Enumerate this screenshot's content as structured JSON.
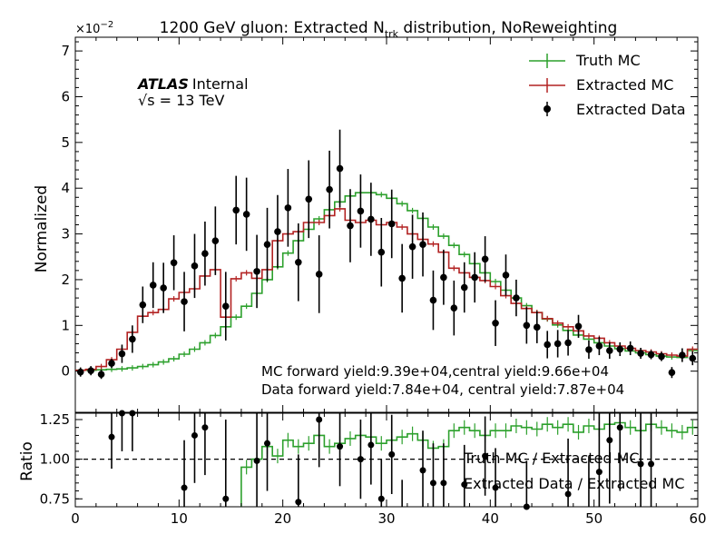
{
  "title_prefix": "1200 GeV gluon: Extracted N",
  "title_sub": "trk",
  "title_suffix": " distribution, NoReweighting",
  "scale_label": "×10",
  "scale_exp": "−2",
  "atlas_bold": "ATLAS",
  "atlas_internal": "Internal",
  "energy_label": "√s =  13 TeV",
  "mc_yield_text": "MC forward yield:9.39e+04,central yield:9.66e+04",
  "data_yield_text": "Data forward yield:7.84e+04, central yield:7.87e+04",
  "colors": {
    "truth": "#2ca02c",
    "extracted_mc": "#b22222",
    "data": "#000000"
  },
  "chart_data": [
    {
      "type": "line",
      "panel": "main",
      "ylabel": "Normalized",
      "xlim": [
        0,
        60
      ],
      "ylim": [
        -0.9,
        7.3
      ],
      "y_multiplier_text": "×10^-2",
      "yticks": [
        "0",
        "1",
        "2",
        "3",
        "4",
        "5",
        "6",
        "7"
      ],
      "legend_position": "top-right",
      "legend": [
        "Truth MC",
        "Extracted MC",
        "Extracted Data"
      ],
      "bin_edges_start": 0,
      "bin_width": 1,
      "series": [
        {
          "name": "Truth MC",
          "kind": "step",
          "values": [
            0.02,
            0.02,
            0.03,
            0.04,
            0.05,
            0.07,
            0.1,
            0.14,
            0.2,
            0.27,
            0.37,
            0.48,
            0.62,
            0.78,
            0.97,
            1.18,
            1.42,
            1.7,
            2.0,
            2.28,
            2.58,
            2.85,
            3.1,
            3.33,
            3.53,
            3.7,
            3.83,
            3.9,
            3.9,
            3.86,
            3.78,
            3.66,
            3.51,
            3.34,
            3.15,
            2.95,
            2.75,
            2.55,
            2.35,
            2.15,
            1.96,
            1.77,
            1.6,
            1.43,
            1.28,
            1.14,
            1.01,
            0.89,
            0.79,
            0.7,
            0.62,
            0.55,
            0.49,
            0.44,
            0.4,
            0.36,
            0.33,
            0.31,
            0.3,
            0.45
          ]
        },
        {
          "name": "Extracted MC",
          "kind": "step",
          "values": [
            0.02,
            0.04,
            0.1,
            0.25,
            0.48,
            0.85,
            1.2,
            1.28,
            1.35,
            1.58,
            1.72,
            1.8,
            2.08,
            2.22,
            1.18,
            2.02,
            2.15,
            2.03,
            2.22,
            2.85,
            3.0,
            3.05,
            3.25,
            3.25,
            3.4,
            3.55,
            3.3,
            3.25,
            3.3,
            3.2,
            3.25,
            3.15,
            3.0,
            2.88,
            2.78,
            2.6,
            2.25,
            2.15,
            2.05,
            1.98,
            1.85,
            1.65,
            1.48,
            1.37,
            1.28,
            1.15,
            1.05,
            0.97,
            0.88,
            0.77,
            0.72,
            0.62,
            0.55,
            0.5,
            0.45,
            0.42,
            0.38,
            0.35,
            0.33,
            0.48
          ]
        },
        {
          "name": "Extracted Data",
          "kind": "points",
          "x": [
            0.5,
            1.5,
            2.5,
            3.5,
            4.5,
            5.5,
            6.5,
            7.5,
            8.5,
            9.5,
            10.5,
            11.5,
            12.5,
            13.5,
            14.5,
            15.5,
            16.5,
            17.5,
            18.5,
            19.5,
            20.5,
            21.5,
            22.5,
            23.5,
            24.5,
            25.5,
            26.5,
            27.5,
            28.5,
            29.5,
            30.5,
            31.5,
            32.5,
            33.5,
            34.5,
            35.5,
            36.5,
            37.5,
            38.5,
            39.5,
            40.5,
            41.5,
            42.5,
            43.5,
            44.5,
            45.5,
            46.5,
            47.5,
            48.5,
            49.5,
            50.5,
            51.5,
            52.5,
            53.5,
            54.5,
            55.5,
            56.5,
            57.5,
            58.5,
            59.5
          ],
          "y": [
            -0.02,
            0.01,
            -0.07,
            0.17,
            0.38,
            0.7,
            1.45,
            1.88,
            1.82,
            2.37,
            1.52,
            2.3,
            2.57,
            2.85,
            1.42,
            3.52,
            3.43,
            2.18,
            2.77,
            3.05,
            3.57,
            2.38,
            3.76,
            2.12,
            3.97,
            4.43,
            3.18,
            3.5,
            3.32,
            2.6,
            3.22,
            2.03,
            2.72,
            2.77,
            1.55,
            2.05,
            1.38,
            1.83,
            2.05,
            2.45,
            1.05,
            2.1,
            1.6,
            1.0,
            0.96,
            0.58,
            0.6,
            0.62,
            0.98,
            0.47,
            0.55,
            0.45,
            0.48,
            0.5,
            0.39,
            0.36,
            0.32,
            -0.03,
            0.35,
            0.28
          ],
          "yerr": [
            0.1,
            0.1,
            0.1,
            0.1,
            0.2,
            0.3,
            0.4,
            0.5,
            0.55,
            0.6,
            0.65,
            0.7,
            0.7,
            0.75,
            0.75,
            0.75,
            0.8,
            0.8,
            0.8,
            0.8,
            0.85,
            0.85,
            0.85,
            0.85,
            0.85,
            0.85,
            0.8,
            0.8,
            0.8,
            0.75,
            0.75,
            0.75,
            0.7,
            0.7,
            0.65,
            0.6,
            0.6,
            0.55,
            0.55,
            0.5,
            0.5,
            0.45,
            0.4,
            0.4,
            0.35,
            0.3,
            0.3,
            0.28,
            0.25,
            0.2,
            0.2,
            0.18,
            0.15,
            0.15,
            0.12,
            0.1,
            0.1,
            0.12,
            0.15,
            0.15
          ]
        }
      ]
    },
    {
      "type": "line",
      "panel": "ratio",
      "xlabel": "",
      "ylabel": "Ratio",
      "xlim": [
        0,
        60
      ],
      "ylim": [
        0.7,
        1.29
      ],
      "yticks": [
        "0.75",
        "1.00",
        "1.25"
      ],
      "xticks": [
        "0",
        "10",
        "20",
        "30",
        "40",
        "50",
        "60"
      ],
      "reference_line": 1.0,
      "legend_position": "center-right",
      "legend": [
        "Truth MC / Extracted MC",
        "Extracted Data / Extracted MC"
      ],
      "series": [
        {
          "name": "Truth MC / Extracted MC",
          "kind": "step",
          "values": [
            null,
            null,
            null,
            null,
            null,
            null,
            null,
            null,
            null,
            null,
            null,
            null,
            null,
            null,
            null,
            null,
            0.95,
            1.0,
            1.08,
            1.02,
            1.12,
            1.08,
            1.1,
            1.15,
            1.08,
            1.1,
            1.13,
            1.15,
            1.14,
            1.1,
            1.12,
            1.14,
            1.16,
            1.12,
            1.07,
            1.08,
            1.18,
            1.2,
            1.18,
            1.15,
            1.18,
            1.18,
            1.21,
            1.2,
            1.19,
            1.22,
            1.2,
            1.22,
            1.17,
            1.21,
            1.19,
            1.22,
            1.23,
            1.2,
            1.18,
            1.22,
            1.2,
            1.18,
            1.17,
            1.2
          ]
        },
        {
          "name": "Extracted Data / Extracted MC",
          "kind": "points",
          "x": [
            3.5,
            4.5,
            5.5,
            10.5,
            11.5,
            12.5,
            14.5,
            17.5,
            18.5,
            21.5,
            23.5,
            25.5,
            27.5,
            28.5,
            29.5,
            30.5,
            31.5,
            33.5,
            34.5,
            35.5,
            37.5,
            39.5,
            40.5,
            43.5,
            47.5,
            49.5,
            50.5,
            51.5,
            52.5,
            54.5,
            55.5
          ],
          "y": [
            1.14,
            1.3,
            1.3,
            0.82,
            1.15,
            1.2,
            0.75,
            0.99,
            1.1,
            0.73,
            1.25,
            1.08,
            1.0,
            1.09,
            0.75,
            1.03,
            0.62,
            0.93,
            0.85,
            0.85,
            0.84,
            1.02,
            0.82,
            0.69,
            0.78,
            0.62,
            0.92,
            1.12,
            1.2,
            0.97,
            0.97
          ],
          "yerr": [
            0.2,
            0.25,
            0.25,
            0.3,
            0.3,
            0.3,
            0.5,
            0.3,
            0.3,
            0.3,
            0.3,
            0.25,
            0.25,
            0.25,
            0.25,
            0.25,
            0.25,
            0.25,
            0.25,
            0.25,
            0.25,
            0.25,
            0.25,
            0.3,
            0.35,
            0.4,
            0.4,
            0.4,
            0.4,
            0.4,
            0.4
          ]
        }
      ]
    }
  ]
}
